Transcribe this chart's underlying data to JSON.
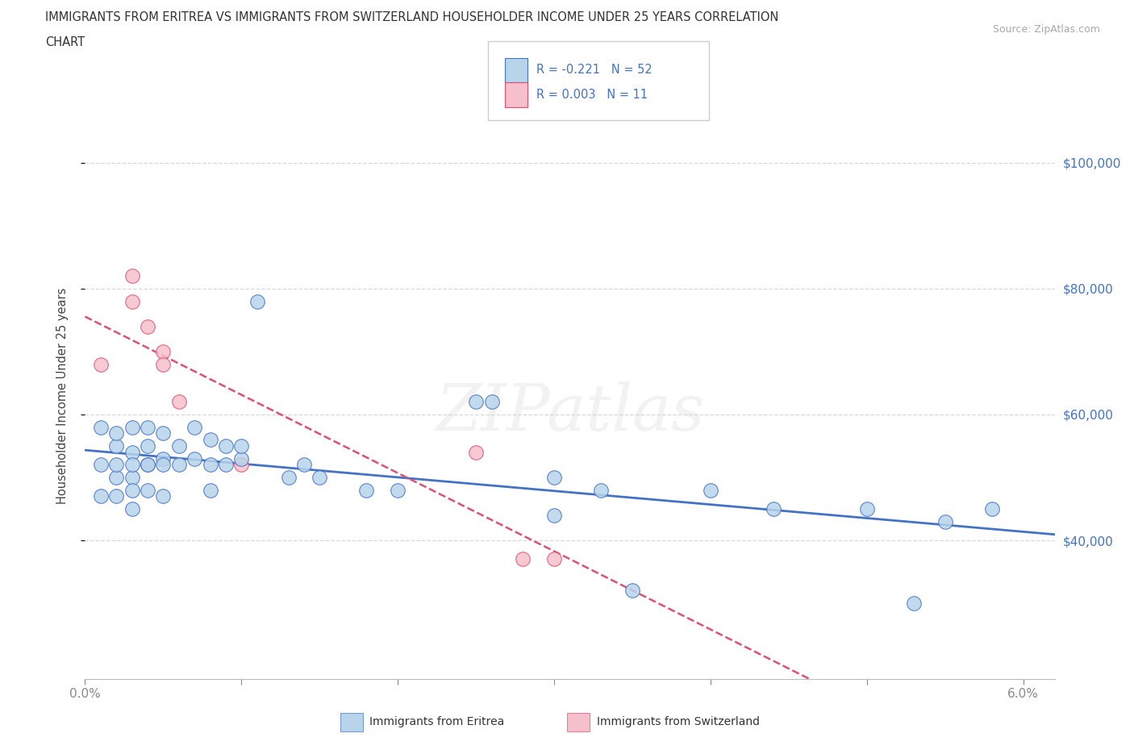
{
  "title_line1": "IMMIGRANTS FROM ERITREA VS IMMIGRANTS FROM SWITZERLAND HOUSEHOLDER INCOME UNDER 25 YEARS CORRELATION",
  "title_line2": "CHART",
  "source_text": "Source: ZipAtlas.com",
  "ylabel": "Householder Income Under 25 years",
  "xmin": 0.0,
  "xmax": 0.062,
  "ymin": 18000,
  "ymax": 108000,
  "yticks": [
    40000,
    60000,
    80000,
    100000
  ],
  "ytick_labels": [
    "$40,000",
    "$60,000",
    "$80,000",
    "$100,000"
  ],
  "xticks": [
    0.0,
    0.01,
    0.02,
    0.03,
    0.04,
    0.05,
    0.06
  ],
  "xtick_labels": [
    "0.0%",
    "",
    "",
    "",
    "",
    "",
    "6.0%"
  ],
  "color_eritrea": "#b8d4ea",
  "color_switzerland": "#f5c0cc",
  "line_color_eritrea": "#4472c4",
  "line_color_switzerland": "#e05070",
  "legend_r_eritrea": "-0.221",
  "legend_n_eritrea": "52",
  "legend_r_switzerland": "0.003",
  "legend_n_switzerland": "11",
  "eritrea_x": [
    0.001,
    0.001,
    0.001,
    0.002,
    0.002,
    0.002,
    0.002,
    0.002,
    0.003,
    0.003,
    0.003,
    0.003,
    0.003,
    0.003,
    0.004,
    0.004,
    0.004,
    0.004,
    0.004,
    0.005,
    0.005,
    0.005,
    0.005,
    0.006,
    0.006,
    0.007,
    0.007,
    0.008,
    0.008,
    0.008,
    0.009,
    0.009,
    0.01,
    0.01,
    0.011,
    0.013,
    0.014,
    0.015,
    0.018,
    0.02,
    0.025,
    0.026,
    0.03,
    0.03,
    0.033,
    0.035,
    0.04,
    0.044,
    0.05,
    0.053,
    0.055,
    0.058
  ],
  "eritrea_y": [
    58000,
    52000,
    47000,
    55000,
    50000,
    47000,
    52000,
    57000,
    45000,
    50000,
    54000,
    58000,
    52000,
    48000,
    52000,
    55000,
    58000,
    52000,
    48000,
    53000,
    57000,
    52000,
    47000,
    52000,
    55000,
    53000,
    58000,
    56000,
    52000,
    48000,
    55000,
    52000,
    53000,
    55000,
    78000,
    50000,
    52000,
    50000,
    48000,
    48000,
    62000,
    62000,
    50000,
    44000,
    48000,
    32000,
    48000,
    45000,
    45000,
    30000,
    43000,
    45000
  ],
  "switzerland_x": [
    0.001,
    0.003,
    0.003,
    0.004,
    0.005,
    0.005,
    0.006,
    0.01,
    0.025,
    0.028,
    0.03
  ],
  "switzerland_y": [
    68000,
    82000,
    78000,
    74000,
    70000,
    68000,
    62000,
    52000,
    54000,
    37000,
    37000
  ],
  "watermark": "ZIPatlas",
  "background_color": "#ffffff",
  "grid_color": "#d8d8d8",
  "tick_label_color": "#4472c4"
}
